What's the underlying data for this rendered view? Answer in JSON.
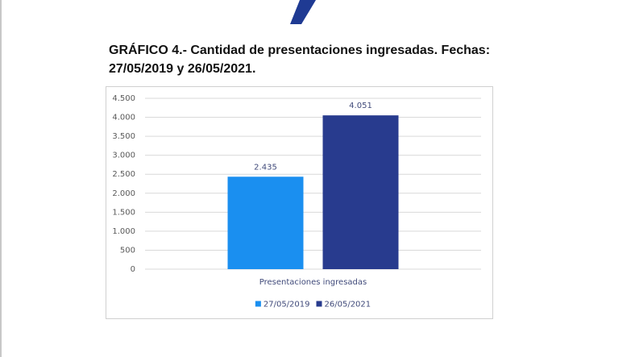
{
  "chart_data": {
    "type": "bar",
    "title": "GRÁFICO 4.- Cantidad de presentaciones ingresadas. Fechas: 27/05/2019 y 26/05/2021.",
    "categories": [
      "Presentaciones ingresadas"
    ],
    "series": [
      {
        "name": "27/05/2019",
        "color": "#1a8ff0",
        "values": [
          2435
        ],
        "value_labels": [
          "2.435"
        ]
      },
      {
        "name": "26/05/2021",
        "color": "#283b8e",
        "values": [
          4051
        ],
        "value_labels": [
          "4.051"
        ]
      }
    ],
    "ylim": [
      0,
      4500
    ],
    "yticks": [
      0,
      500,
      {
        "value": 1000,
        "label": "1.000"
      },
      {
        "value": 1500,
        "label": "1.500"
      },
      {
        "value": 2000,
        "label": "2.000"
      },
      {
        "value": 2500,
        "label": "2.500"
      },
      {
        "value": 3000,
        "label": "3.000"
      },
      {
        "value": 3500,
        "label": "3.500"
      },
      {
        "value": 4000,
        "label": "4.000"
      },
      {
        "value": 4500,
        "label": "4.500"
      }
    ],
    "grid": true,
    "legend": "bottom"
  }
}
